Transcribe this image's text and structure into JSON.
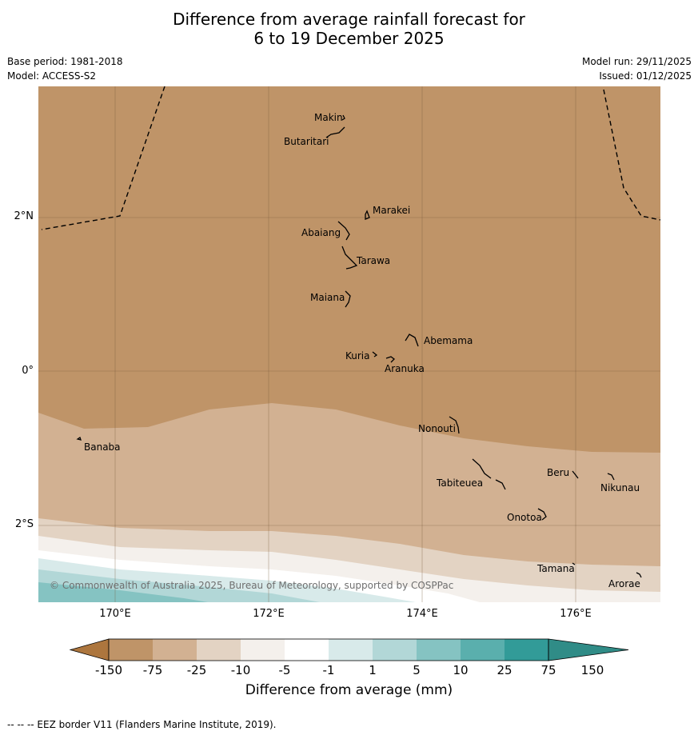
{
  "title_line1": "Difference from average rainfall forecast for",
  "title_line2": "6 to 19 December 2025",
  "meta_left": {
    "base_period": "Base period: 1981-2018",
    "model": "Model: ACCESS-S2"
  },
  "meta_right": {
    "model_run": "Model run: 29/11/2025",
    "issued": "Issued: 01/12/2025"
  },
  "map": {
    "lat_labels": [
      "2°N",
      "0°",
      "2°S"
    ],
    "lon_labels": [
      "170°E",
      "172°E",
      "174°E",
      "176°E"
    ],
    "places": [
      "Makin",
      "Butaritari",
      "Marakei",
      "Abaiang",
      "Tarawa",
      "Maiana",
      "Abemama",
      "Kuria",
      "Aranuka",
      "Nonouti",
      "Banaba",
      "Beru",
      "Nikunau",
      "Tabiteuea",
      "Onotoa",
      "Tamana",
      "Arorae"
    ],
    "copyright": "© Commonwealth of Australia 2025, Bureau of Meteorology, supported by COSPPac",
    "region_fill_colors": [
      "#bf9468",
      "#d2b192",
      "#e3d3c3",
      "#f4f0ec",
      "#ffffff",
      "#d8eaea",
      "#b2d7d7",
      "#85c3c2"
    ]
  },
  "colorbar": {
    "ticks": [
      "-150",
      "-75",
      "-25",
      "-10",
      "-5",
      "-1",
      "1",
      "5",
      "10",
      "25",
      "75",
      "150"
    ],
    "colors": [
      "#ad763e",
      "#bf9468",
      "#d2b192",
      "#e3d3c3",
      "#f4f0ec",
      "#ffffff",
      "#d8eaea",
      "#b2d7d7",
      "#85c3c2",
      "#5aafad",
      "#329b98",
      "#308c87"
    ],
    "label": "Difference from average (mm)"
  },
  "footer": "--  --  -- EEZ border V11 (Flanders Marine Institute, 2019)."
}
